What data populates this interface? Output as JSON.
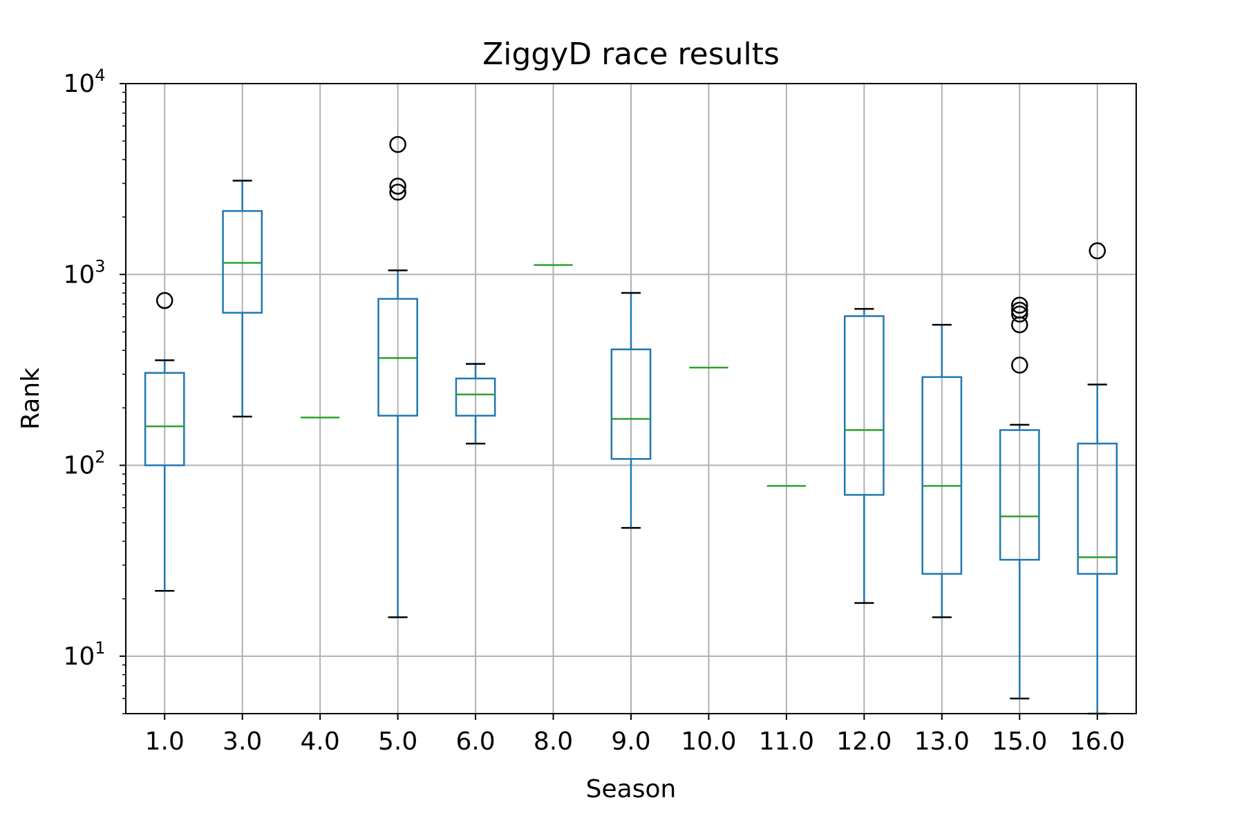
{
  "chart_data": {
    "type": "box",
    "title": "ZiggyD race results",
    "xlabel": "Season",
    "ylabel": "Rank",
    "y_scale": "log",
    "ylim": [
      5,
      10000
    ],
    "grid": true,
    "categories": [
      "1.0",
      "3.0",
      "4.0",
      "5.0",
      "6.0",
      "8.0",
      "9.0",
      "10.0",
      "11.0",
      "12.0",
      "13.0",
      "15.0",
      "16.0"
    ],
    "y_ticks": [
      {
        "base": "10",
        "exp": "1",
        "value": 10
      },
      {
        "base": "10",
        "exp": "2",
        "value": 100
      },
      {
        "base": "10",
        "exp": "3",
        "value": 1000
      },
      {
        "base": "10",
        "exp": "4",
        "value": 10000
      }
    ],
    "boxes": [
      {
        "season": "1.0",
        "whisker_low": 22,
        "q1": 100,
        "median": 160,
        "q3": 305,
        "whisker_high": 355,
        "outliers": [
          730
        ]
      },
      {
        "season": "3.0",
        "whisker_low": 180,
        "q1": 630,
        "median": 1150,
        "q3": 2150,
        "whisker_high": 3100,
        "outliers": []
      },
      {
        "season": "4.0",
        "whisker_low": 178,
        "q1": 178,
        "median": 178,
        "q3": 178,
        "whisker_high": 178,
        "outliers": []
      },
      {
        "season": "5.0",
        "whisker_low": 16,
        "q1": 182,
        "median": 365,
        "q3": 745,
        "whisker_high": 1050,
        "outliers": [
          2700,
          2900,
          4800
        ]
      },
      {
        "season": "6.0",
        "whisker_low": 130,
        "q1": 182,
        "median": 235,
        "q3": 285,
        "whisker_high": 340,
        "outliers": []
      },
      {
        "season": "8.0",
        "whisker_low": 1120,
        "q1": 1120,
        "median": 1120,
        "q3": 1120,
        "whisker_high": 1120,
        "outliers": []
      },
      {
        "season": "9.0",
        "whisker_low": 47,
        "q1": 108,
        "median": 175,
        "q3": 405,
        "whisker_high": 800,
        "outliers": []
      },
      {
        "season": "10.0",
        "whisker_low": 325,
        "q1": 325,
        "median": 325,
        "q3": 325,
        "whisker_high": 325,
        "outliers": []
      },
      {
        "season": "11.0",
        "whisker_low": 78,
        "q1": 78,
        "median": 78,
        "q3": 78,
        "whisker_high": 78,
        "outliers": []
      },
      {
        "season": "12.0",
        "whisker_low": 19,
        "q1": 70,
        "median": 153,
        "q3": 605,
        "whisker_high": 660,
        "outliers": []
      },
      {
        "season": "13.0",
        "whisker_low": 16,
        "q1": 27,
        "median": 78,
        "q3": 290,
        "whisker_high": 545,
        "outliers": []
      },
      {
        "season": "15.0",
        "whisker_low": 6,
        "q1": 32,
        "median": 54,
        "q3": 153,
        "whisker_high": 163,
        "outliers": [
          335,
          545,
          620,
          650,
          690
        ]
      },
      {
        "season": "16.0",
        "whisker_low": 5,
        "q1": 27,
        "median": 33,
        "q3": 130,
        "whisker_high": 265,
        "outliers": [
          1330
        ]
      }
    ],
    "colors": {
      "box": "#1f77b4",
      "median": "#2ca02c",
      "whisker_cap": "#000000",
      "outlier": "#000000",
      "grid": "#b0b0b0",
      "frame": "#000000"
    }
  }
}
